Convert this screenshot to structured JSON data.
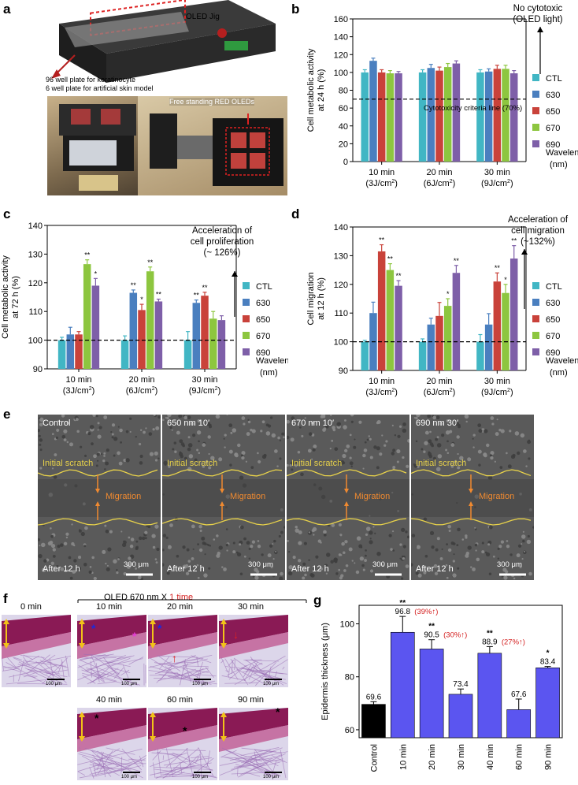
{
  "colors": {
    "ctl": "#41b6c4",
    "w630": "#4a7fbf",
    "w650": "#c9423a",
    "w670": "#8dc63f",
    "w690": "#7e5fa8",
    "gbar_control": "#000000",
    "gbar": "#5b55f0",
    "red": "#d42020",
    "scratch": "#e8d24a",
    "arrow": "#f08a30"
  },
  "panels": {
    "a": "a",
    "b": "b",
    "c": "c",
    "d": "d",
    "e": "e",
    "f": "f",
    "g": "g"
  },
  "panel_a": {
    "jig_label": "OLED Jig",
    "plate_line1": "96 well plate for keratinocyte",
    "plate_line2": "6 well plate for artificial skin model",
    "free_standing": "Free standing RED OLEDs"
  },
  "legend": {
    "entries": [
      "CTL",
      "630",
      "650",
      "670",
      "690"
    ],
    "wavelength": "Wavelength",
    "nm": "(nm)"
  },
  "groups": [
    {
      "time": "10 min",
      "dose": "(3J/cm",
      "sup": "2",
      ")": ")"
    },
    {
      "time": "20 min",
      "dose": "(6J/cm",
      "sup": "2",
      ")": ")"
    },
    {
      "time": "30 min",
      "dose": "(9J/cm",
      "sup": "2",
      ")": ")"
    }
  ],
  "chart_data": [
    {
      "id": "b",
      "type": "bar",
      "ylabel_1": "Cell metabolic activity",
      "ylabel_2": "at 24 h (%)",
      "ylim": [
        0,
        160
      ],
      "yticks": [
        0,
        20,
        40,
        60,
        80,
        100,
        120,
        140,
        160
      ],
      "categories": [
        "10 min (3J/cm2)",
        "20 min (6J/cm2)",
        "30 min (9J/cm2)"
      ],
      "series": [
        {
          "name": "CTL",
          "values": [
            100,
            100,
            100
          ],
          "err": [
            3,
            3,
            3
          ]
        },
        {
          "name": "630",
          "values": [
            113,
            105,
            101
          ],
          "err": [
            3,
            4,
            3
          ]
        },
        {
          "name": "650",
          "values": [
            100,
            102,
            104
          ],
          "err": [
            3,
            4,
            4
          ]
        },
        {
          "name": "670",
          "values": [
            99,
            106,
            104
          ],
          "err": [
            3,
            4,
            4
          ]
        },
        {
          "name": "690",
          "values": [
            99,
            110,
            99
          ],
          "err": [
            2,
            3,
            3
          ]
        }
      ],
      "stars": [
        [
          "",
          "",
          "",
          "",
          ""
        ],
        [
          "",
          "",
          "",
          "",
          ""
        ],
        [
          "",
          "",
          "",
          "",
          ""
        ]
      ],
      "refline": 70,
      "refline_label": "Cytotoxicity criteria line (70%)",
      "note_1": "No cytotoxic",
      "note_2": "(OLED light)"
    },
    {
      "id": "c",
      "type": "bar",
      "ylabel_1": "Cell metabolic activity",
      "ylabel_2": "at 72 h (%)",
      "ylim": [
        90,
        140
      ],
      "yticks": [
        90,
        100,
        110,
        120,
        130,
        140
      ],
      "categories": [
        "10 min (3J/cm2)",
        "20 min (6J/cm2)",
        "30 min (9J/cm2)"
      ],
      "series": [
        {
          "name": "CTL",
          "values": [
            100,
            100,
            100
          ],
          "err": [
            1,
            1.5,
            3
          ]
        },
        {
          "name": "630",
          "values": [
            102,
            116.5,
            113
          ],
          "err": [
            2.5,
            1,
            1
          ]
        },
        {
          "name": "650",
          "values": [
            102,
            110.5,
            115.5
          ],
          "err": [
            1,
            2,
            1.2
          ]
        },
        {
          "name": "670",
          "values": [
            126.5,
            124,
            107.5
          ],
          "err": [
            1.5,
            1.5,
            2.5
          ]
        },
        {
          "name": "690",
          "values": [
            119,
            113.5,
            107
          ],
          "err": [
            2.5,
            0.8,
            1.5
          ]
        }
      ],
      "stars": [
        [
          "",
          "",
          "",
          "**",
          "*"
        ],
        [
          "",
          "**",
          "*",
          "**",
          "**"
        ],
        [
          "",
          "**",
          "**",
          "",
          ""
        ]
      ],
      "refline": 100,
      "note_1": "Acceleration of",
      "note_2": "cell proliferation",
      "note_3": "(~ 126%)"
    },
    {
      "id": "d",
      "type": "bar",
      "ylabel_1": "Cell migration",
      "ylabel_2": "at 12 h (%)",
      "ylim": [
        90,
        140
      ],
      "yticks": [
        90,
        100,
        110,
        120,
        130,
        140
      ],
      "categories": [
        "10 min (3J/cm2)",
        "20 min (6J/cm2)",
        "30 min (9J/cm2)"
      ],
      "series": [
        {
          "name": "CTL",
          "values": [
            100,
            100,
            100
          ],
          "err": [
            0.5,
            1,
            2.5
          ]
        },
        {
          "name": "630",
          "values": [
            110,
            106,
            106
          ],
          "err": [
            3.8,
            2.2,
            3.8
          ]
        },
        {
          "name": "650",
          "values": [
            131.5,
            109,
            121
          ],
          "err": [
            2.3,
            4.7,
            3
          ]
        },
        {
          "name": "670",
          "values": [
            125,
            112.5,
            117
          ],
          "err": [
            2.2,
            2.5,
            3
          ]
        },
        {
          "name": "690",
          "values": [
            119.5,
            124,
            129
          ],
          "err": [
            1.8,
            2.6,
            4.5
          ]
        }
      ],
      "stars": [
        [
          "",
          "",
          "**",
          "**",
          "**"
        ],
        [
          "",
          "",
          "",
          "*",
          "**"
        ],
        [
          "",
          "",
          "**",
          "*",
          "**"
        ]
      ],
      "refline": 100,
      "note_1": "Acceleration of",
      "note_2": "cell migration",
      "note_3": "(~132%)"
    },
    {
      "id": "g",
      "type": "bar",
      "ylabel": "Epidermis thickness (μm)",
      "ylim": [
        57,
        107
      ],
      "yticks": [
        60,
        80,
        100
      ],
      "categories": [
        "Control",
        "10 min",
        "20 min",
        "30 min",
        "40 min",
        "60 min",
        "90 min"
      ],
      "values": [
        69.6,
        96.8,
        90.5,
        73.4,
        88.9,
        67.6,
        83.4
      ],
      "err": [
        1,
        6,
        3.5,
        2,
        2.5,
        4,
        0.5
      ],
      "labels": [
        "69.6",
        "96.8",
        "90.5",
        "73.4",
        "88.9",
        "67.6",
        "83.4"
      ],
      "stars": [
        "",
        "**",
        "**",
        "",
        "**",
        "",
        "*"
      ],
      "pct": [
        "",
        "(39%↑)",
        "(30%↑)",
        "",
        "(27%↑)",
        "",
        ""
      ]
    }
  ],
  "panel_e": {
    "images": [
      {
        "title": "Control"
      },
      {
        "title": "650 nm 10′"
      },
      {
        "title": "670 nm 10′"
      },
      {
        "title": "690 nm 30′"
      }
    ],
    "initial_scratch": "Initial scratch",
    "migration": "Migration",
    "after": "After 12 h",
    "scale": "300 μm"
  },
  "panel_f": {
    "header": "OLED 670 nm X ",
    "header_red": "1 time",
    "times": [
      "0 min",
      "10 min",
      "20 min",
      "30 min",
      "40 min",
      "60 min",
      "90 min"
    ],
    "scale": "100 μm"
  }
}
